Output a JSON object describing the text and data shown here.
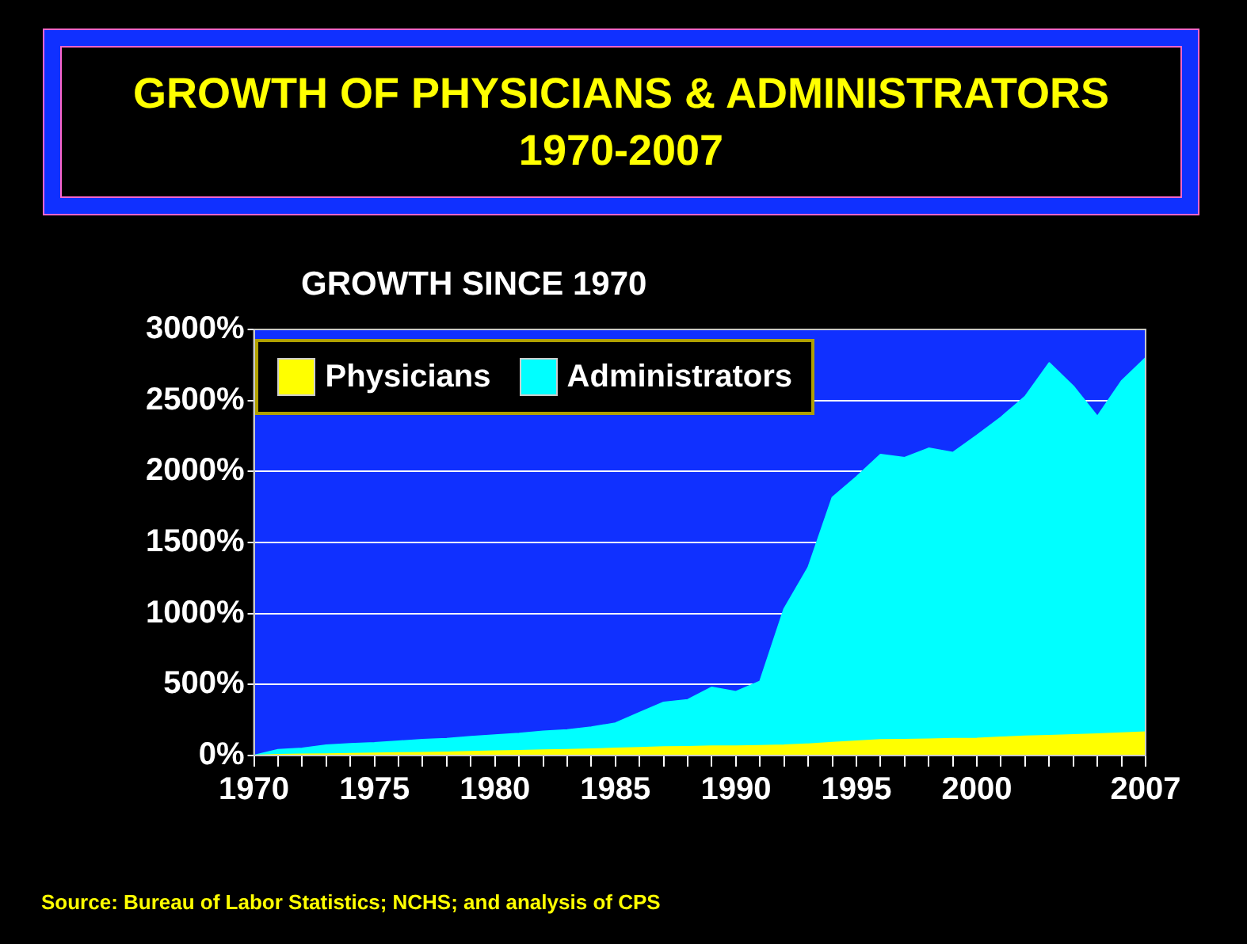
{
  "chart_data": {
    "type": "area",
    "title": "GROWTH OF PHYSICIANS & ADMINISTRATORS\n1970-2007",
    "subtitle": "GROWTH SINCE 1970",
    "annotations": [
      "Source: Bureau of Labor Statistics; NCHS; and analysis of CPS"
    ],
    "x": [
      1970,
      1971,
      1972,
      1973,
      1974,
      1975,
      1976,
      1977,
      1978,
      1979,
      1980,
      1981,
      1982,
      1983,
      1984,
      1985,
      1986,
      1987,
      1988,
      1989,
      1990,
      1991,
      1992,
      1993,
      1994,
      1995,
      1996,
      1997,
      1998,
      1999,
      2000,
      2001,
      2002,
      2003,
      2004,
      2005,
      2006,
      2007
    ],
    "series": [
      {
        "name": "Physicians",
        "color": "#ffff00",
        "values": [
          0,
          5,
          8,
          10,
          12,
          15,
          18,
          20,
          22,
          26,
          30,
          34,
          38,
          40,
          45,
          50,
          55,
          60,
          62,
          65,
          66,
          68,
          72,
          80,
          90,
          100,
          110,
          112,
          115,
          118,
          120,
          128,
          135,
          140,
          145,
          150,
          158,
          164
        ]
      },
      {
        "name": "Administrators",
        "color": "#00ffff",
        "values": [
          0,
          40,
          50,
          73,
          82,
          89,
          100,
          111,
          118,
          133,
          144,
          155,
          170,
          180,
          199,
          228,
          301,
          374,
          392,
          480,
          449,
          522,
          1032,
          1324,
          1816,
          1962,
          2119,
          2097,
          2163,
          2133,
          2254,
          2381,
          2527,
          2764,
          2600,
          2388,
          2636,
          2800
        ]
      }
    ],
    "xlim": [
      1970,
      2007
    ],
    "xticks": [
      1970,
      {
        "value": 1971,
        "label": null
      },
      {
        "value": 1972,
        "label": null
      },
      {
        "value": 1973,
        "label": null
      },
      {
        "value": 1974,
        "label": null
      },
      1975,
      {
        "value": 1976,
        "label": null
      },
      {
        "value": 1977,
        "label": null
      },
      {
        "value": 1978,
        "label": null
      },
      {
        "value": 1979,
        "label": null
      },
      1980,
      {
        "value": 1981,
        "label": null
      },
      {
        "value": 1982,
        "label": null
      },
      {
        "value": 1983,
        "label": null
      },
      {
        "value": 1984,
        "label": null
      },
      1985,
      {
        "value": 1986,
        "label": null
      },
      {
        "value": 1987,
        "label": null
      },
      {
        "value": 1988,
        "label": null
      },
      {
        "value": 1989,
        "label": null
      },
      1990,
      {
        "value": 1991,
        "label": null
      },
      {
        "value": 1992,
        "label": null
      },
      {
        "value": 1993,
        "label": null
      },
      {
        "value": 1994,
        "label": null
      },
      1995,
      {
        "value": 1996,
        "label": null
      },
      {
        "value": 1997,
        "label": null
      },
      {
        "value": 1998,
        "label": null
      },
      {
        "value": 1999,
        "label": null
      },
      2000,
      {
        "value": 2001,
        "label": null
      },
      {
        "value": 2002,
        "label": null
      },
      {
        "value": 2003,
        "label": null
      },
      {
        "value": 2004,
        "label": null
      },
      {
        "value": 2005,
        "label": null
      },
      {
        "value": 2006,
        "label": null
      },
      2007
    ],
    "ylim": [
      0,
      3000
    ],
    "yticks": [
      {
        "value": 0,
        "label": "0%"
      },
      {
        "value": 500,
        "label": "500%"
      },
      {
        "value": 1000,
        "label": "1000%"
      },
      {
        "value": 1500,
        "label": "1500%"
      },
      {
        "value": 2000,
        "label": "2000%"
      },
      {
        "value": 2500,
        "label": "2500%"
      },
      {
        "value": 3000,
        "label": "3000%"
      }
    ],
    "grid": "y",
    "legend": "top left"
  }
}
